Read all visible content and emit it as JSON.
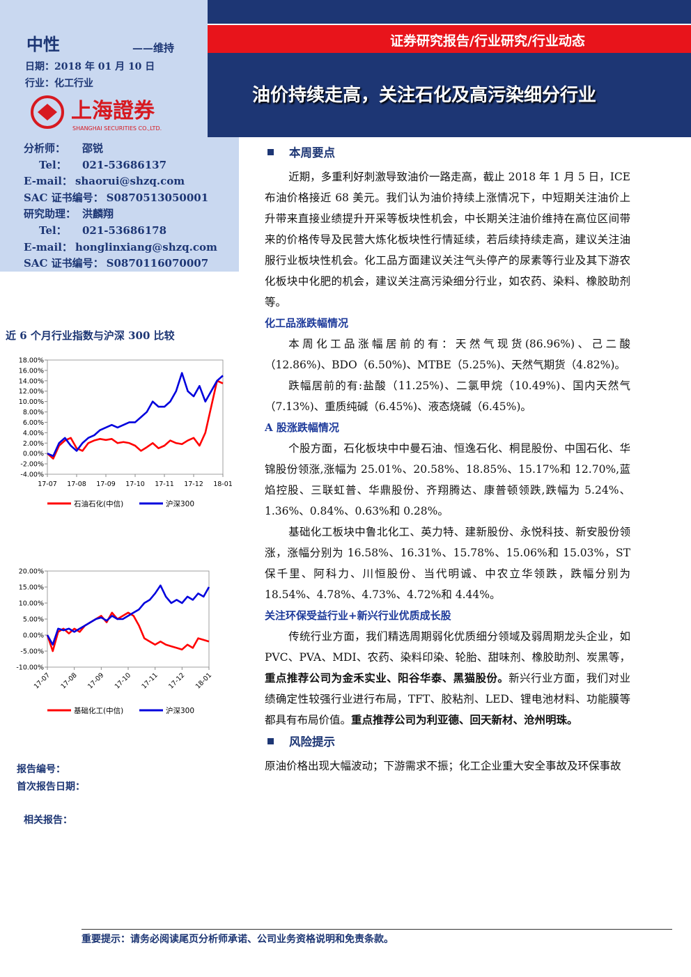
{
  "header": {
    "rating": "中性",
    "rating_action": "——维持",
    "date": "日期：2018 年 01 月 10 日",
    "industry": "行业：化工行业",
    "logo_cn": "上海證券",
    "logo_en": "SHANGHAI SECURITIES CO.,LTD.",
    "report_type": "证券研究报告/行业研究/行业动态",
    "title": "油价持续走高，关注石化及高污染细分行业"
  },
  "analysts": [
    [
      "分析师：",
      "邵锐"
    ],
    [
      "Tel：",
      "021-53686137"
    ],
    [
      "E-mail：",
      "shaorui@shzq.com"
    ],
    [
      "SAC 证书编号：",
      "S0870513050001"
    ],
    [
      "研究助理：",
      "洪麟翔"
    ],
    [
      "Tel：",
      "021-53686178"
    ],
    [
      "E-mail：",
      "honglinxiang@shzq.com"
    ],
    [
      "SAC 证书编号：",
      "S0870116070007"
    ]
  ],
  "chart_section_title": "近 6 个月行业指数与沪深 300 比较",
  "chart_data": [
    {
      "type": "line",
      "categories": [
        "17-07",
        null,
        null,
        null,
        null,
        "17-08",
        null,
        null,
        null,
        null,
        "17-09",
        null,
        null,
        null,
        null,
        "17-10",
        null,
        null,
        null,
        null,
        "17-11",
        null,
        null,
        null,
        null,
        "17-12",
        null,
        null,
        null,
        null,
        "18-01"
      ],
      "ylim": [
        -4,
        18
      ],
      "yticks": [
        {
          "value": 18,
          "label": "18.00%"
        },
        {
          "value": 16,
          "label": "16.00%"
        },
        {
          "value": 14,
          "label": "14.00%"
        },
        {
          "value": 12,
          "label": "12.00%"
        },
        {
          "value": 10,
          "label": "10.00%"
        },
        {
          "value": 8,
          "label": "8.00%"
        },
        {
          "value": 6,
          "label": "6.00%"
        },
        {
          "value": 4,
          "label": "4.00%"
        },
        {
          "value": 2,
          "label": "2.00%"
        },
        {
          "value": 0,
          "label": "0.00%"
        },
        {
          "value": -2,
          "label": "-2.00%"
        },
        {
          "value": -4,
          "label": "-4.00%"
        }
      ],
      "series": [
        {
          "name": "石油石化(中信)",
          "color": "#ff0000",
          "values": [
            0,
            -1,
            1.5,
            2.5,
            3,
            1,
            0.5,
            2,
            2.5,
            2.8,
            2.6,
            2.8,
            2,
            2.2,
            2,
            1.5,
            0.5,
            1.2,
            2,
            1,
            1.5,
            2.5,
            2,
            1.8,
            2.5,
            3,
            1.5,
            4,
            9,
            14,
            13.5
          ]
        },
        {
          "name": "沪深300",
          "color": "#0000dd",
          "values": [
            0,
            -0.5,
            2,
            3,
            1.5,
            0.5,
            2,
            3,
            3.5,
            4.5,
            5,
            5.5,
            5,
            5.5,
            6,
            6,
            7,
            8,
            10,
            9,
            9,
            10,
            12,
            15.5,
            12,
            11,
            13,
            10,
            12,
            14,
            15
          ]
        }
      ]
    },
    {
      "type": "line",
      "categories": [
        "17-07",
        null,
        null,
        null,
        null,
        "17-08",
        null,
        null,
        null,
        null,
        "17-09",
        null,
        null,
        null,
        null,
        "17-10",
        null,
        null,
        null,
        null,
        "17-11",
        null,
        null,
        null,
        null,
        "17-12",
        null,
        null,
        null,
        null,
        "18-01"
      ],
      "ylim": [
        -10,
        20
      ],
      "yticks": [
        {
          "value": 20,
          "label": "20.00%"
        },
        {
          "value": 15,
          "label": "15.00%"
        },
        {
          "value": 10,
          "label": "10.00%"
        },
        {
          "value": 5,
          "label": "5.00%"
        },
        {
          "value": 0,
          "label": "0.00%"
        },
        {
          "value": -5,
          "label": "-5.00%"
        },
        {
          "value": -10,
          "label": "-10.00%"
        }
      ],
      "series": [
        {
          "name": "基础化工(中信)",
          "color": "#ff0000",
          "values": [
            0,
            -5,
            1,
            2,
            0.5,
            2,
            1,
            3,
            4,
            5,
            6,
            4,
            7,
            5,
            6,
            7,
            6,
            3,
            -1,
            -2,
            -3,
            -2,
            -3,
            -3.5,
            -4,
            -4.5,
            -3,
            -4,
            -1,
            -1.5,
            -2
          ]
        },
        {
          "name": "沪深300",
          "color": "#0000dd",
          "values": [
            0,
            -3,
            2,
            1.5,
            2,
            1,
            2,
            3,
            4,
            5,
            5.5,
            4.5,
            6,
            5,
            5,
            6,
            7,
            8,
            10,
            11,
            13,
            15.5,
            12,
            10,
            11,
            10,
            12,
            11,
            13,
            12,
            15
          ]
        }
      ]
    }
  ],
  "report_meta": [
    "报告编号：",
    "首次报告日期：",
    "相关报告："
  ],
  "body": [
    {
      "heading": "本周要点",
      "style": "main",
      "paragraphs": [
        {
          "runs": [
            {
              "text": "近期，多重利好刺激导致油价一路走高，截止 2018 年 1 月 5 日，ICE 布油价格接近 68 美元。我们认为油价持续上涨情况下，中短期关注油价上升带来直接业绩提升开采等板块性机会，中长期关注油价维持在高位区间带来的价格传导及民营大炼化板块性行情延续，若后续持续走高，建议关注油服行业板块性机会。化工品方面建议关注气头停产的尿素等行业及其下游农化板块中化肥的机会，建议关注高污染细分行业，如农药、染料、橡胶助剂等。"
            }
          ]
        }
      ]
    },
    {
      "heading": "化工品涨跌幅情况",
      "style": "sub",
      "paragraphs": [
        {
          "runs": [
            {
              "text": "本周化工品涨幅居前的有：天然气现货(86.96%)、己二酸（12.86%)、BDO（6.50%)、MTBE（5.25%)、天然气期货（4.82%)。"
            }
          ]
        },
        {
          "runs": [
            {
              "text": "跌幅居前的有:盐酸（11.25%)、二氯甲烷（10.49%)、国内天然气（7.13%)、重质纯碱（6.45%)、液态烧碱（6.45%)。"
            }
          ]
        }
      ]
    },
    {
      "heading": "A 股涨跌幅情况",
      "style": "sub",
      "paragraphs": [
        {
          "runs": [
            {
              "text": "个股方面，石化板块中中曼石油、恒逸石化、桐昆股份、中国石化、华锦股份领涨,涨幅为 25.01%、20.58%、18.85%、15.17%和 12.70%,蓝焰控股、三联虹普、华鼎股份、齐翔腾达、康普顿领跌,跌幅为 5.24%、1.36%、0.84%、0.63%和 0.28%。"
            }
          ]
        },
        {
          "runs": [
            {
              "text": "基础化工板块中鲁北化工、英力特、建新股份、永悦科技、新安股份领涨，涨幅分别为 16.58%、16.31%、15.78%、15.06%和 15.03%，ST 保千里、阿科力、川恒股份、当代明诚、中农立华领跌，跌幅分别为 18.54%、4.78%、4.73%、4.72%和 4.44%。"
            }
          ]
        }
      ]
    },
    {
      "heading": "关注环保受益行业+新兴行业优质成长股",
      "style": "sub",
      "paragraphs": [
        {
          "runs": [
            {
              "text": "传统行业方面，我们精选周期弱化优质细分领域及弱周期龙头企业，如 PVC、PVA、MDI、农药、染料印染、轮胎、甜味剂、橡胶助剂、炭黑等，"
            },
            {
              "text": "重点推荐公司为金禾实业、阳谷华泰、黑猫股份。",
              "bold": true
            },
            {
              "text": "新兴行业方面，我们对业绩确定性较强行业进行布局，TFT、胶粘剂、LED、锂电池材料、功能膜等都具有布局价值。"
            },
            {
              "text": "重点推荐公司为利亚德、回天新材、沧州明珠。",
              "bold": true
            }
          ]
        }
      ]
    },
    {
      "heading": "风险提示",
      "style": "main",
      "paragraphs": [
        {
          "indent": false,
          "runs": [
            {
              "text": "原油价格出现大幅波动；下游需求不振；化工企业重大安全事故及环保事故"
            }
          ]
        }
      ]
    }
  ],
  "footer": "重要提示：请务必阅读尾页分析师承诺、公司业务资格说明和免责条款。"
}
